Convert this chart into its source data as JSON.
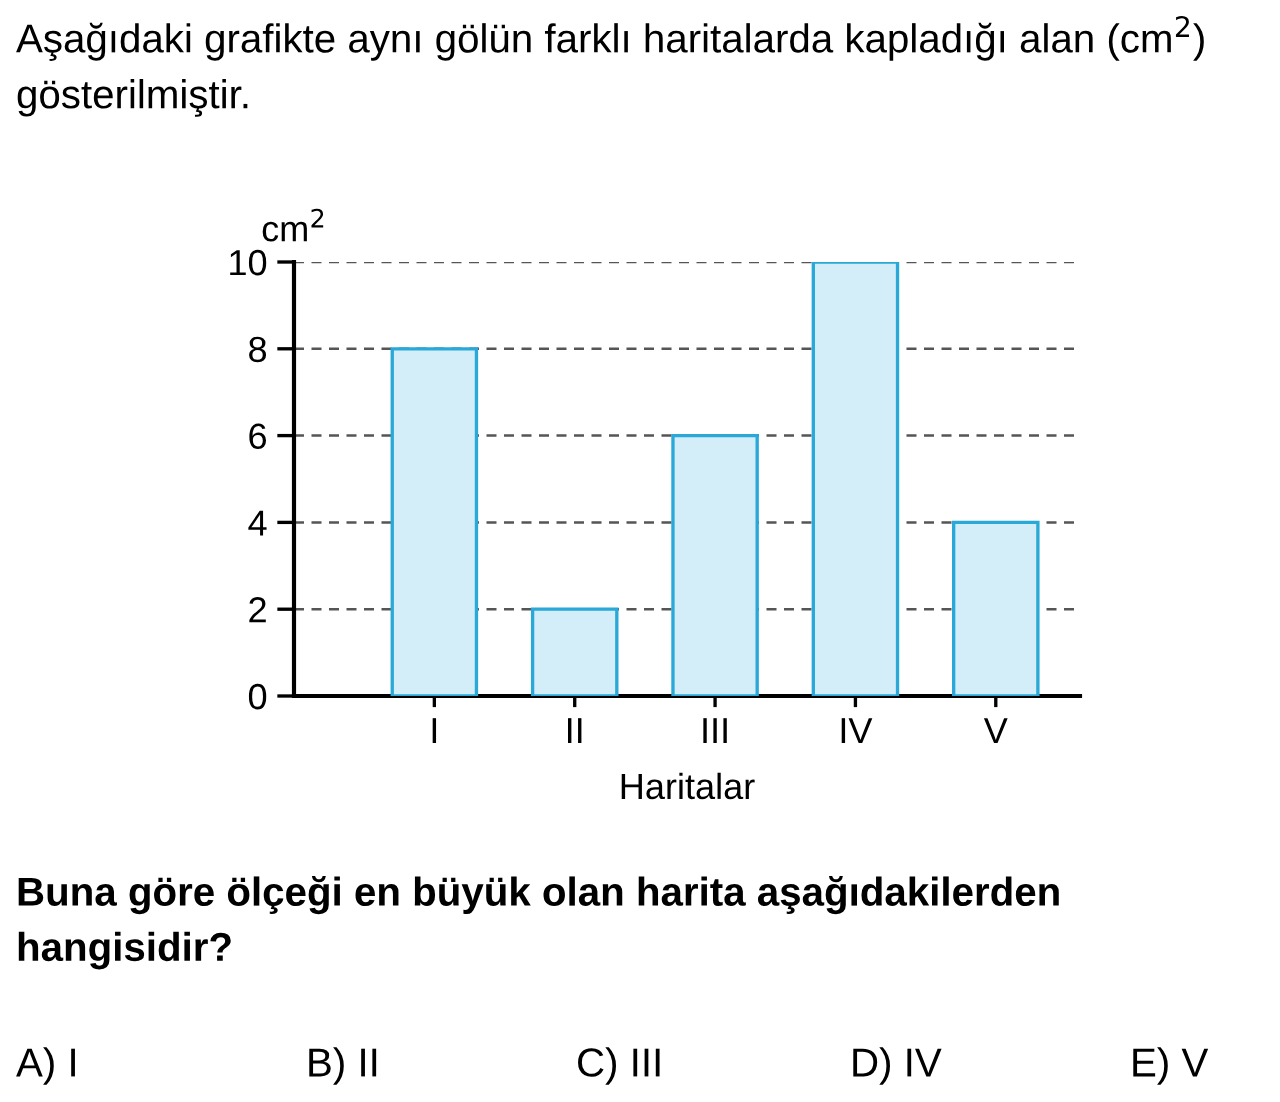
{
  "chart_data": {
    "type": "bar",
    "title": "Aşağıdaki grafikte aynı gölün farklı haritalarda kapladığı alan (cm$^{2}$) gösterilmiştir.",
    "categories": [
      "I",
      "II",
      "III",
      "IV",
      "V"
    ],
    "values": [
      8,
      2,
      6,
      10,
      4
    ],
    "color": "#d4eef9",
    "xlabel": "Haritalar",
    "ylabel": "cm$^{2}$",
    "ylim": [
      0,
      10
    ],
    "yticks": [
      0,
      2,
      4,
      6,
      8,
      10
    ],
    "grid": "y",
    "legend": false,
    "annotations": [
      "Buna göre ölçeği en büyük olan harita aşağıdakilerden hangisidir?",
      "A) I",
      "B) II",
      "C) III",
      "D) IV",
      "E) V"
    ]
  }
}
